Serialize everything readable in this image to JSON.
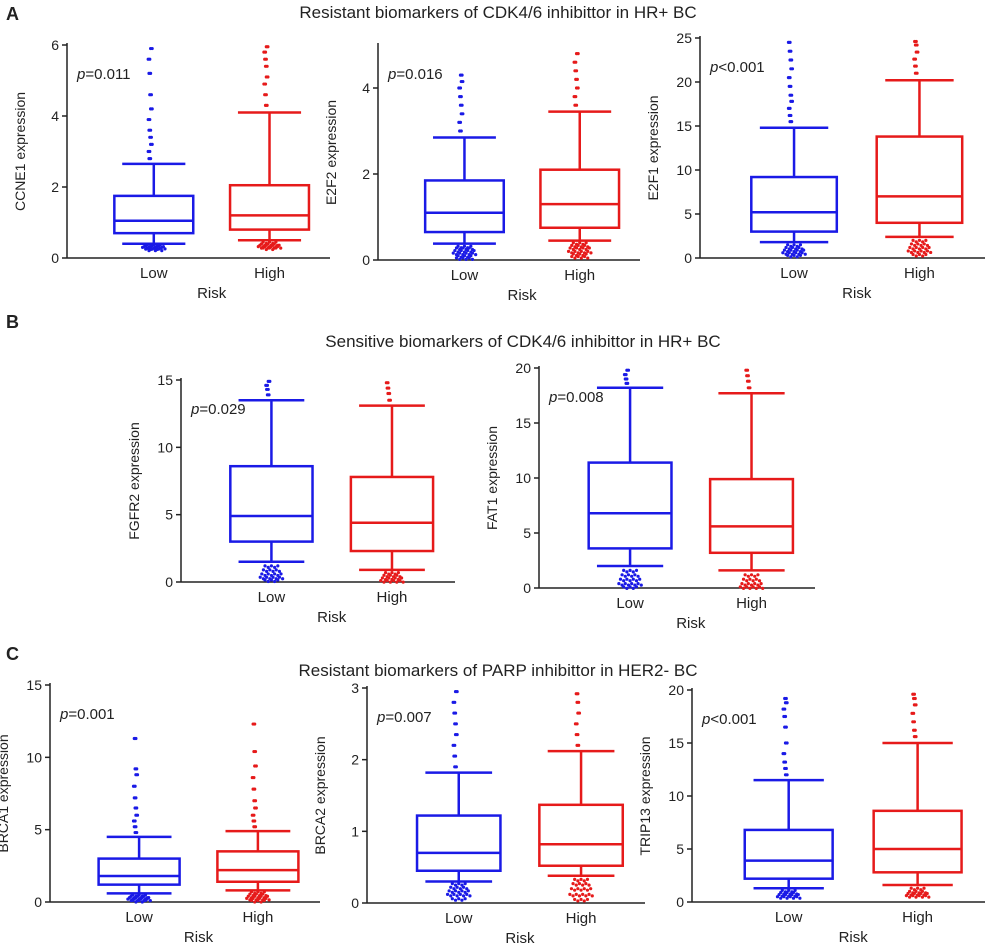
{
  "figure": {
    "colors": {
      "low": "#1a1ae6",
      "high": "#e61a1a",
      "axis": "#222222"
    },
    "panels": [
      {
        "label": "A",
        "title": "Resistant biomarkers of CDK4/6 inhibittor in HR+ BC"
      },
      {
        "label": "B",
        "title": "Sensitive biomarkers of CDK4/6 inhibittor in HR+ BC"
      },
      {
        "label": "C",
        "title": "Resistant biomarkers of PARP inhibittor in HER2- BC"
      }
    ]
  },
  "chart_data": [
    {
      "type": "boxplot",
      "panel": "A",
      "ylabel": "CCNE1 expression",
      "xlabel": "Risk",
      "categories": [
        "Low",
        "High"
      ],
      "ylim": [
        0,
        6
      ],
      "yticks": [
        0,
        2,
        4,
        6
      ],
      "pvalue_prefix": "p",
      "pvalue_text": "=0.011",
      "series": [
        {
          "name": "Low",
          "min": 0.4,
          "q1": 0.7,
          "median": 1.05,
          "q3": 1.75,
          "max": 2.65,
          "outliers_low": [
            0.38,
            0.35,
            0.32,
            0.3,
            0.28,
            0.25
          ],
          "outliers_high": [
            2.8,
            3.0,
            3.2,
            3.4,
            3.6,
            3.9,
            4.2,
            4.6,
            5.2,
            5.6,
            5.9
          ]
        },
        {
          "name": "High",
          "min": 0.5,
          "q1": 0.8,
          "median": 1.2,
          "q3": 2.05,
          "max": 4.1,
          "outliers_low": [
            0.45,
            0.4,
            0.36,
            0.32,
            0.28
          ],
          "outliers_high": [
            4.3,
            4.6,
            4.9,
            5.1,
            5.4,
            5.6,
            5.8,
            5.95
          ]
        }
      ]
    },
    {
      "type": "boxplot",
      "panel": "A",
      "ylabel": "E2F2  expression",
      "xlabel": "Risk",
      "categories": [
        "Low",
        "High"
      ],
      "ylim": [
        0,
        5
      ],
      "yticks": [
        0,
        2,
        4
      ],
      "pvalue_prefix": "p",
      "pvalue_text": "=0.016",
      "series": [
        {
          "name": "Low",
          "min": 0.38,
          "q1": 0.65,
          "median": 1.1,
          "q3": 1.85,
          "max": 2.85,
          "outliers_low": [
            0.32,
            0.28,
            0.22,
            0.16,
            0.1,
            0.05
          ],
          "outliers_high": [
            3.0,
            3.2,
            3.4,
            3.6,
            3.8,
            4.0,
            4.15,
            4.3
          ]
        },
        {
          "name": "High",
          "min": 0.45,
          "q1": 0.75,
          "median": 1.3,
          "q3": 2.1,
          "max": 3.45,
          "outliers_low": [
            0.4,
            0.34,
            0.28,
            0.2,
            0.14,
            0.08
          ],
          "outliers_high": [
            3.6,
            3.8,
            4.0,
            4.2,
            4.4,
            4.6,
            4.8
          ]
        }
      ]
    },
    {
      "type": "boxplot",
      "panel": "A",
      "ylabel": "E2F1 expression",
      "xlabel": "Risk",
      "categories": [
        "Low",
        "High"
      ],
      "ylim": [
        0,
        25
      ],
      "yticks": [
        0,
        5,
        10,
        15,
        20,
        25
      ],
      "pvalue_prefix": "p",
      "pvalue_text": "<0.001",
      "series": [
        {
          "name": "Low",
          "min": 1.8,
          "q1": 3.0,
          "median": 5.2,
          "q3": 9.2,
          "max": 14.8,
          "outliers_low": [
            1.5,
            1.2,
            0.9,
            0.6,
            0.3
          ],
          "outliers_high": [
            15.5,
            16.2,
            17.0,
            17.8,
            18.5,
            19.5,
            20.5,
            21.5,
            22.5,
            23.5,
            24.5
          ]
        },
        {
          "name": "High",
          "min": 2.4,
          "q1": 4.0,
          "median": 7.0,
          "q3": 13.8,
          "max": 20.2,
          "outliers_low": [
            2.0,
            1.6,
            1.2,
            0.8,
            0.4
          ],
          "outliers_high": [
            21.0,
            21.8,
            22.6,
            23.4,
            24.2,
            24.6
          ]
        }
      ]
    },
    {
      "type": "boxplot",
      "panel": "B",
      "ylabel": "FGFR2 expression",
      "xlabel": "Risk",
      "categories": [
        "Low",
        "High"
      ],
      "ylim": [
        0,
        15
      ],
      "yticks": [
        0,
        5,
        10,
        15
      ],
      "pvalue_prefix": "p",
      "pvalue_text": "=0.029",
      "series": [
        {
          "name": "Low",
          "min": 1.5,
          "q1": 3.0,
          "median": 4.9,
          "q3": 8.6,
          "max": 13.5,
          "outliers_low": [
            1.2,
            0.9,
            0.6,
            0.35,
            0.15
          ],
          "outliers_high": [
            13.9,
            14.3,
            14.6,
            14.9
          ]
        },
        {
          "name": "High",
          "min": 0.9,
          "q1": 2.3,
          "median": 4.4,
          "q3": 7.8,
          "max": 13.1,
          "outliers_low": [
            0.7,
            0.5,
            0.3,
            0.1
          ],
          "outliers_high": [
            13.5,
            14.0,
            14.4,
            14.8
          ]
        }
      ]
    },
    {
      "type": "boxplot",
      "panel": "B",
      "ylabel": "FAT1 expression",
      "xlabel": "Risk",
      "categories": [
        "Low",
        "High"
      ],
      "ylim": [
        0,
        20
      ],
      "yticks": [
        0,
        5,
        10,
        15,
        20
      ],
      "pvalue_prefix": "p",
      "pvalue_text": "=0.008",
      "series": [
        {
          "name": "Low",
          "min": 2.0,
          "q1": 3.6,
          "median": 6.8,
          "q3": 11.4,
          "max": 18.2,
          "outliers_low": [
            1.6,
            1.2,
            0.8,
            0.4,
            0.1
          ],
          "outliers_high": [
            18.6,
            19.0,
            19.4,
            19.8
          ]
        },
        {
          "name": "High",
          "min": 1.6,
          "q1": 3.2,
          "median": 5.6,
          "q3": 9.9,
          "max": 17.7,
          "outliers_low": [
            1.2,
            0.8,
            0.4,
            0.1
          ],
          "outliers_high": [
            18.2,
            18.8,
            19.3,
            19.8
          ]
        }
      ]
    },
    {
      "type": "boxplot",
      "panel": "C",
      "ylabel": "BRCA1 expression",
      "xlabel": "Risk",
      "categories": [
        "Low",
        "High"
      ],
      "ylim": [
        0,
        15
      ],
      "yticks": [
        0,
        5,
        10,
        15
      ],
      "pvalue_prefix": "p",
      "pvalue_text": "=0.001",
      "series": [
        {
          "name": "Low",
          "min": 0.6,
          "q1": 1.2,
          "median": 1.8,
          "q3": 3.0,
          "max": 4.5,
          "outliers_low": [
            0.5,
            0.4,
            0.3,
            0.2,
            0.1
          ],
          "outliers_high": [
            4.8,
            5.2,
            5.6,
            6.0,
            6.5,
            7.2,
            8.0,
            8.8,
            9.2,
            11.3
          ]
        },
        {
          "name": "High",
          "min": 0.8,
          "q1": 1.4,
          "median": 2.2,
          "q3": 3.5,
          "max": 4.9,
          "outliers_low": [
            0.7,
            0.55,
            0.4,
            0.25,
            0.1
          ],
          "outliers_high": [
            5.2,
            5.6,
            6.0,
            6.5,
            7.0,
            7.8,
            8.6,
            9.4,
            10.4,
            12.3
          ]
        }
      ]
    },
    {
      "type": "boxplot",
      "panel": "C",
      "ylabel": "BRCA2  expression",
      "xlabel": "Risk",
      "categories": [
        "Low",
        "High"
      ],
      "ylim": [
        0,
        3
      ],
      "yticks": [
        0,
        1,
        2,
        3
      ],
      "pvalue_prefix": "p",
      "pvalue_text": "=0.007",
      "series": [
        {
          "name": "Low",
          "min": 0.3,
          "q1": 0.45,
          "median": 0.7,
          "q3": 1.22,
          "max": 1.82,
          "outliers_low": [
            0.27,
            0.22,
            0.17,
            0.12,
            0.06
          ],
          "outliers_high": [
            1.9,
            2.05,
            2.2,
            2.35,
            2.5,
            2.65,
            2.8,
            2.95
          ]
        },
        {
          "name": "High",
          "min": 0.38,
          "q1": 0.52,
          "median": 0.82,
          "q3": 1.37,
          "max": 2.12,
          "outliers_low": [
            0.33,
            0.27,
            0.2,
            0.12,
            0.05
          ],
          "outliers_high": [
            2.2,
            2.35,
            2.5,
            2.65,
            2.8,
            2.92
          ]
        }
      ]
    },
    {
      "type": "boxplot",
      "panel": "C",
      "ylabel": "TRIP13  expression",
      "xlabel": "Risk",
      "categories": [
        "Low",
        "High"
      ],
      "ylim": [
        0,
        20
      ],
      "yticks": [
        0,
        5,
        10,
        15,
        20
      ],
      "pvalue_prefix": "p",
      "pvalue_text": "<0.001",
      "series": [
        {
          "name": "Low",
          "min": 1.3,
          "q1": 2.2,
          "median": 3.9,
          "q3": 6.8,
          "max": 11.5,
          "outliers_low": [
            1.1,
            0.9,
            0.7,
            0.5
          ],
          "outliers_high": [
            12.0,
            12.6,
            13.2,
            14.0,
            15.0,
            16.5,
            17.5,
            18.2,
            18.8,
            19.2
          ]
        },
        {
          "name": "High",
          "min": 1.6,
          "q1": 2.8,
          "median": 5.0,
          "q3": 8.6,
          "max": 15.0,
          "outliers_low": [
            1.3,
            1.0,
            0.8,
            0.6
          ],
          "outliers_high": [
            15.6,
            16.2,
            17.0,
            17.8,
            18.6,
            19.2,
            19.6
          ]
        }
      ]
    }
  ]
}
